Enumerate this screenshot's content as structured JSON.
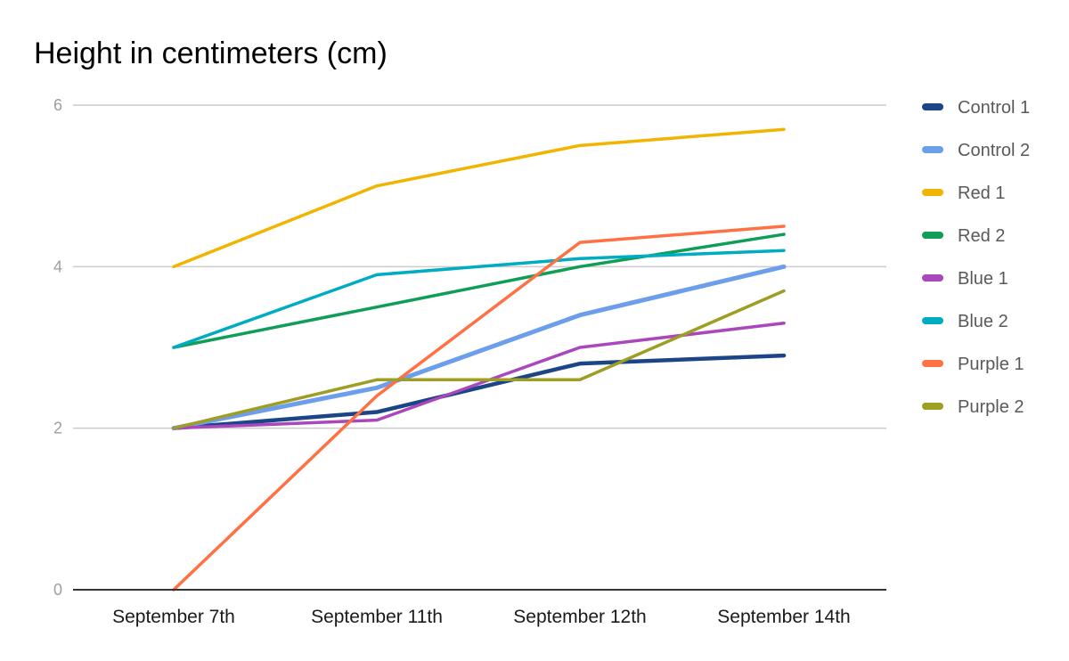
{
  "chart_data": {
    "type": "line",
    "title": "Height in centimeters (cm)",
    "xlabel": "",
    "ylabel": "",
    "categories": [
      "September 7th",
      "September 11th",
      "September 12th",
      "September 14th"
    ],
    "ylim": [
      0,
      6
    ],
    "yticks": [
      0,
      2,
      4,
      6
    ],
    "grid": true,
    "legend_position": "right",
    "series": [
      {
        "name": "Control 1",
        "color": "#1c4587",
        "values": [
          2.0,
          2.2,
          2.8,
          2.9
        ]
      },
      {
        "name": "Control 2",
        "color": "#6d9eeb",
        "values": [
          2.0,
          2.5,
          3.4,
          4.0
        ]
      },
      {
        "name": "Red 1",
        "color": "#f1b400",
        "values": [
          4.0,
          5.0,
          5.5,
          5.7
        ]
      },
      {
        "name": "Red 2",
        "color": "#0f9d58",
        "values": [
          3.0,
          3.5,
          4.0,
          4.4
        ]
      },
      {
        "name": "Blue 1",
        "color": "#ab47bc",
        "values": [
          2.0,
          2.1,
          3.0,
          3.3
        ]
      },
      {
        "name": "Blue 2",
        "color": "#00acc1",
        "values": [
          3.0,
          3.9,
          4.1,
          4.2
        ]
      },
      {
        "name": "Purple 1",
        "color": "#ff7043",
        "values": [
          0.0,
          2.4,
          4.3,
          4.5
        ]
      },
      {
        "name": "Purple 2",
        "color": "#9e9d24",
        "values": [
          2.0,
          2.6,
          2.6,
          3.7
        ]
      }
    ]
  }
}
